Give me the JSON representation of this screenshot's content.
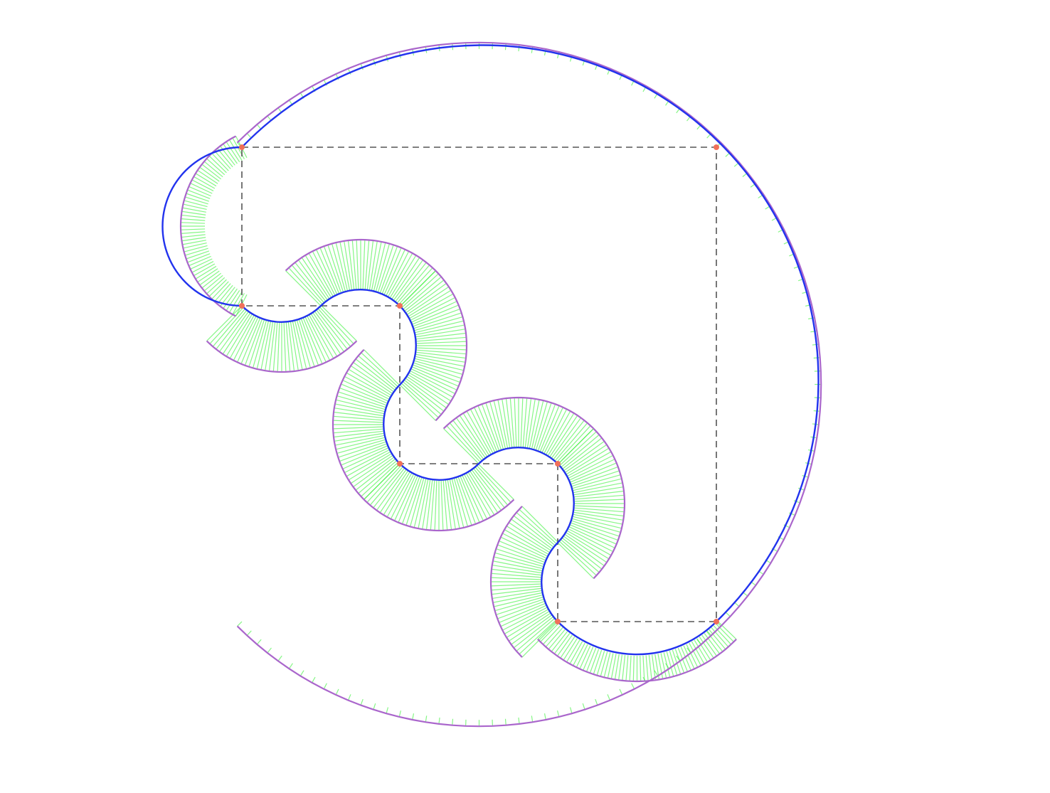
{
  "diagram": {
    "polygon_vertex_count": 8,
    "segment_count": 8,
    "colors": {
      "background": "#ffffff",
      "control_polygon": "#555555",
      "vertex_marker": "#f0705a",
      "curve": "#2233ee",
      "curvature_comb": "#22ee22",
      "comb_envelope": "#aa66cc"
    }
  }
}
